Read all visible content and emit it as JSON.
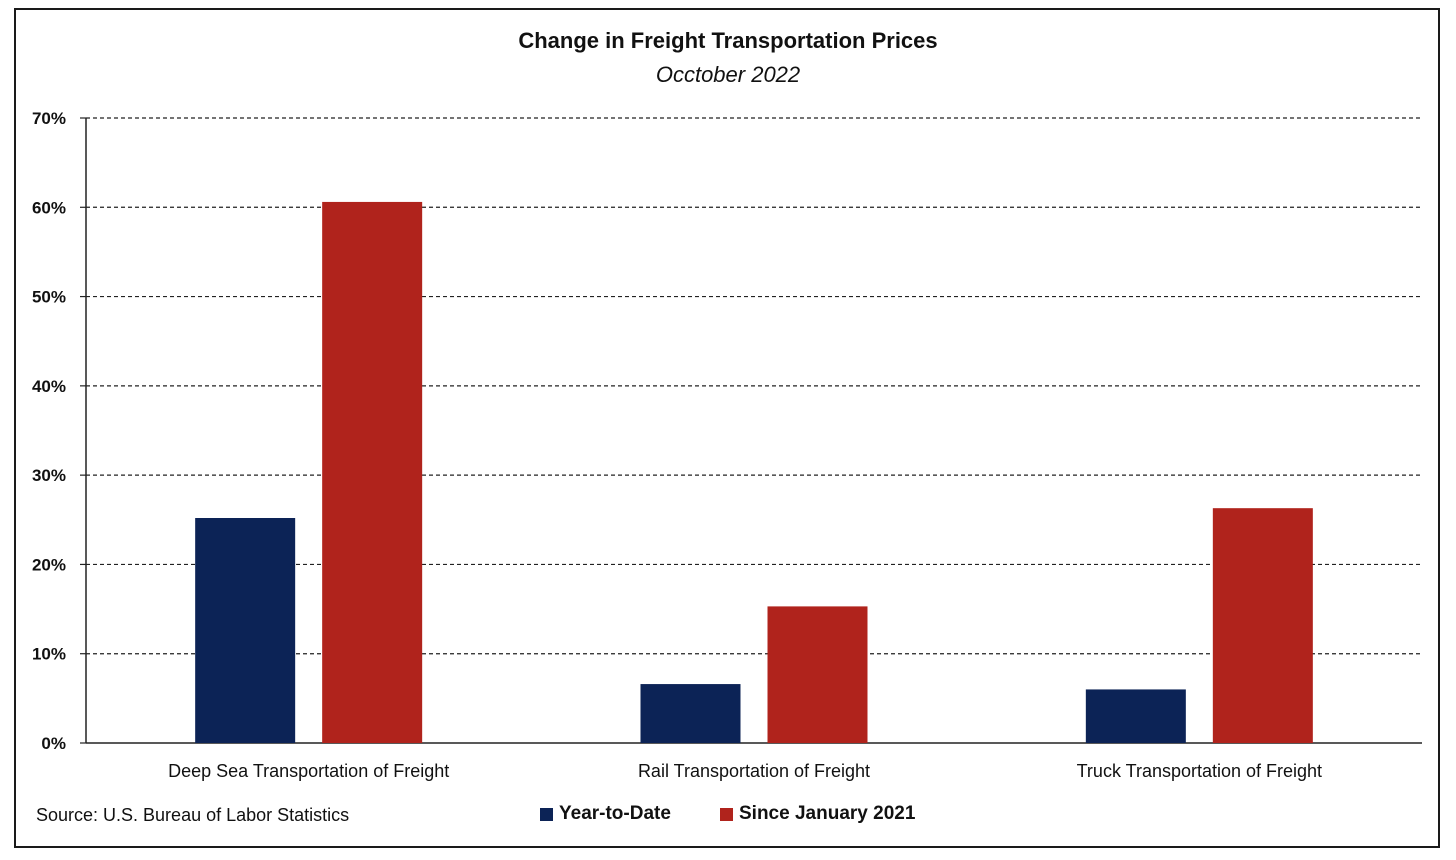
{
  "chart_data": {
    "type": "bar",
    "title": "Change in Freight Transportation Prices",
    "subtitle": "Occtober 2022",
    "categories": [
      "Deep Sea Transportation of Freight",
      "Rail Transportation of Freight",
      "Truck Transportation of Freight"
    ],
    "series": [
      {
        "name": "Year-to-Date",
        "values": [
          25.2,
          6.6,
          6.0
        ],
        "color": "#0c2356"
      },
      {
        "name": "Since January 2021",
        "values": [
          60.6,
          15.3,
          26.3
        ],
        "color": "#b0231c"
      }
    ],
    "ylim": [
      0,
      70
    ],
    "yticks": [
      0,
      10,
      20,
      30,
      40,
      50,
      60,
      70
    ],
    "ytick_labels": [
      "0%",
      "10%",
      "20%",
      "30%",
      "40%",
      "50%",
      "60%",
      "70%"
    ],
    "xlabel": "",
    "ylabel": "",
    "grid": "dashed horizontal",
    "legend_position": "bottom"
  },
  "source": "Source: U.S. Bureau of Labor Statistics"
}
